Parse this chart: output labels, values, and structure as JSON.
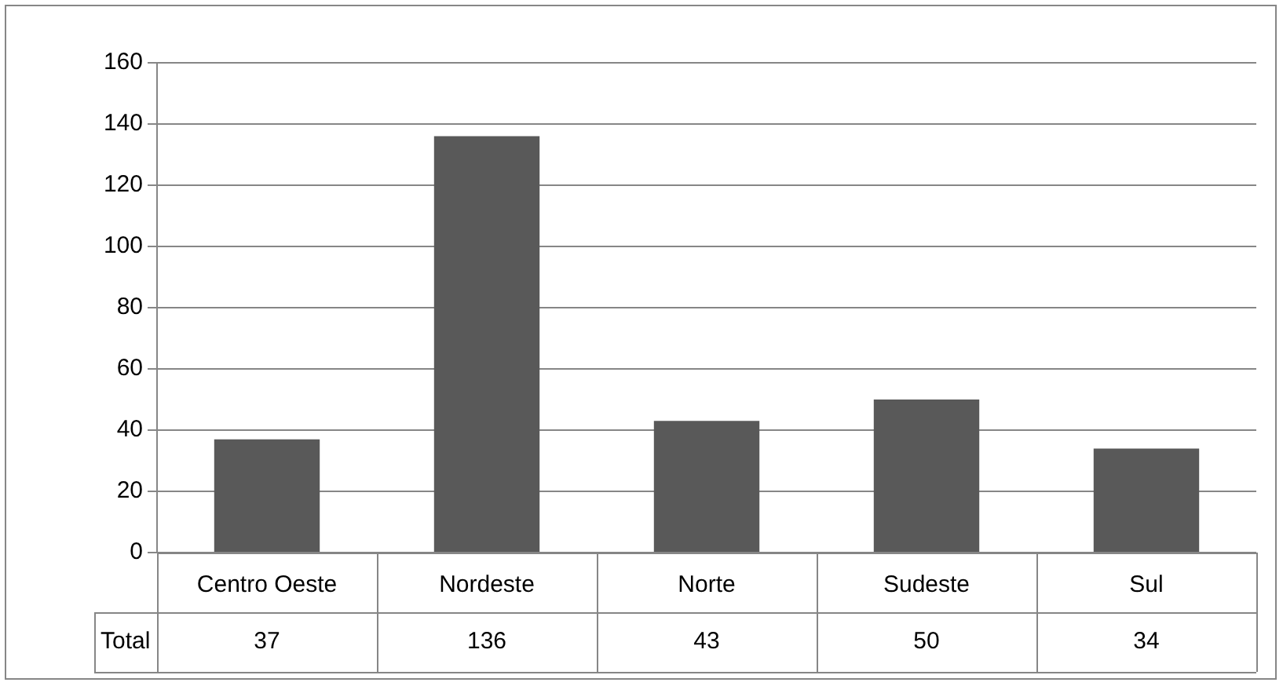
{
  "chart_data": {
    "type": "bar",
    "categories": [
      "Centro Oeste",
      "Nordeste",
      "Norte",
      "Sudeste",
      "Sul"
    ],
    "series": [
      {
        "name": "Total",
        "color": "#595959",
        "values": [
          37,
          136,
          43,
          50,
          34
        ]
      }
    ],
    "ylim": [
      0,
      160
    ],
    "yticks": [
      0,
      20,
      40,
      60,
      80,
      100,
      120,
      140,
      160
    ],
    "grid": "y",
    "legend": false,
    "data_labels": true
  }
}
